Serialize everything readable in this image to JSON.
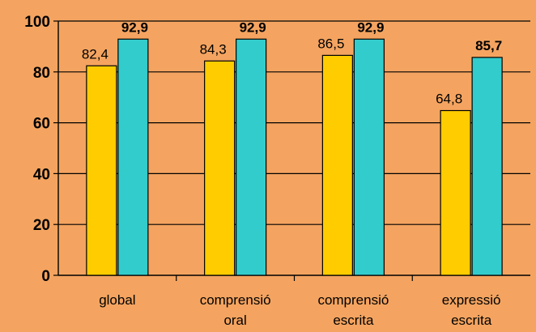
{
  "chart_data": {
    "type": "bar",
    "title": "",
    "xlabel": "",
    "ylabel": "",
    "ylim": [
      0,
      100
    ],
    "yticks": [
      0,
      20,
      40,
      60,
      80,
      100
    ],
    "grid": true,
    "legend": "none",
    "categories": [
      [
        "global"
      ],
      [
        "comprensió",
        "oral"
      ],
      [
        "comprensió",
        "escrita"
      ],
      [
        "expressió",
        "escrita"
      ]
    ],
    "series": [
      {
        "values": [
          82.4,
          84.3,
          86.5,
          64.8
        ],
        "labels": [
          "82,4",
          "84,3",
          "86,5",
          "64,8"
        ],
        "color": "#FFCC00",
        "label_bold": false
      },
      {
        "values": [
          92.9,
          92.9,
          92.9,
          85.7
        ],
        "labels": [
          "92,9",
          "92,9",
          "92,9",
          "85,7"
        ],
        "color": "#33CCCC",
        "label_bold": true
      }
    ],
    "background_color": "#F4A460"
  }
}
